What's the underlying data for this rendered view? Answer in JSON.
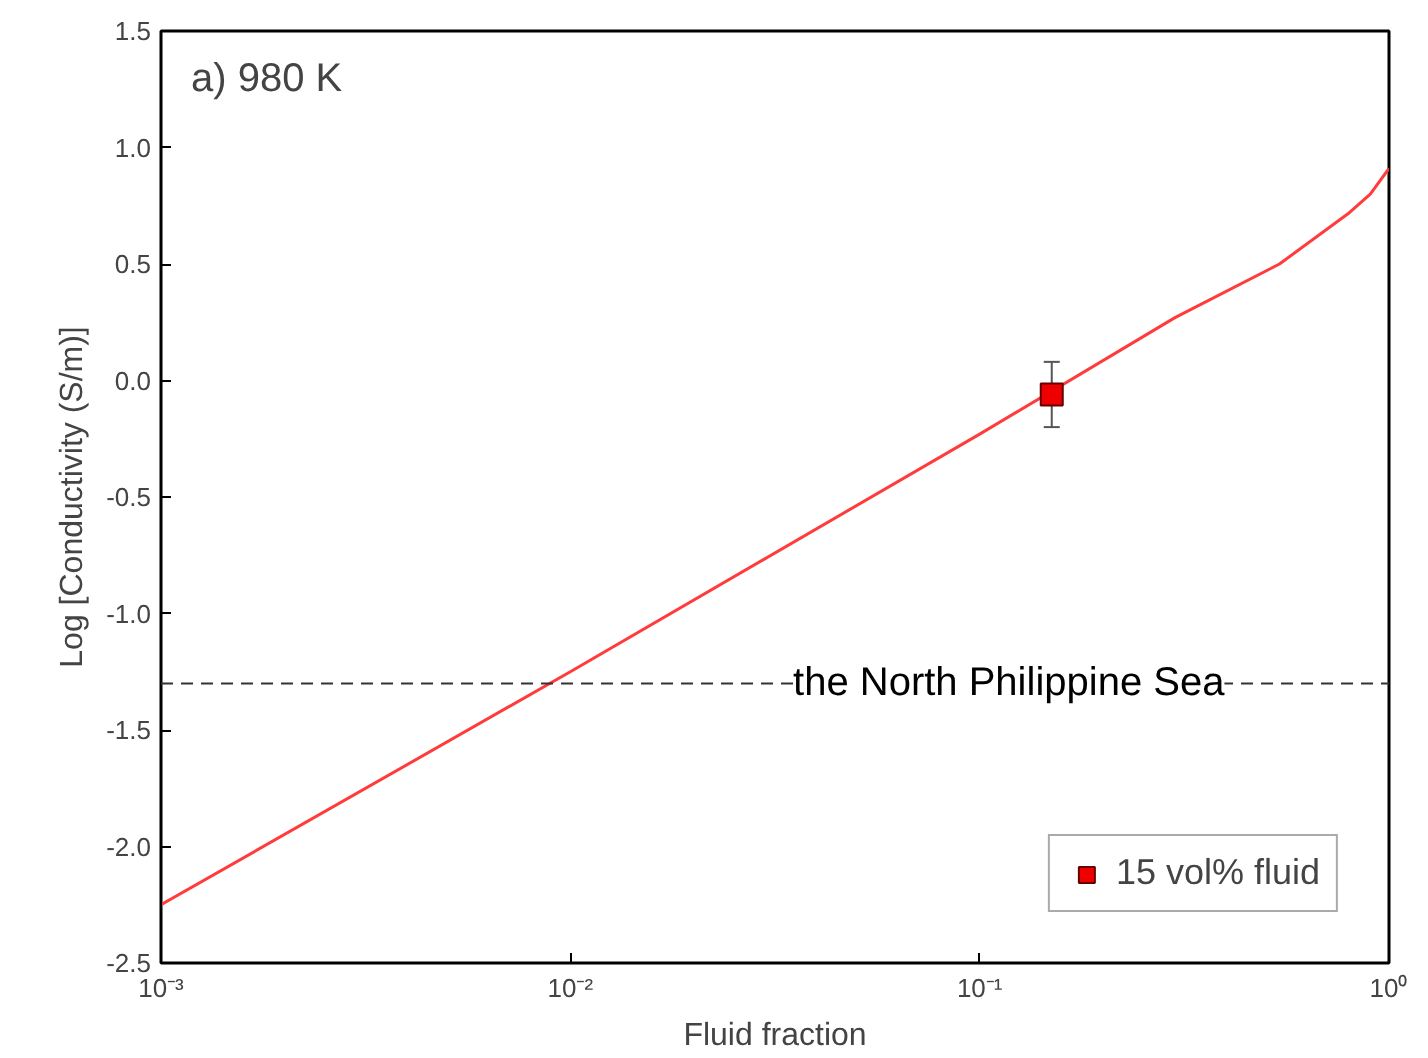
{
  "chart_data": {
    "type": "line",
    "xlabel": "Fluid fraction",
    "ylabel": "Log [Conductivity (S/m)]",
    "log": "x",
    "xlim": [
      0.001,
      1
    ],
    "ylim": [
      -2.5,
      1.5
    ],
    "xticks": [
      {
        "value": 0.001,
        "label": "10⁻³"
      },
      {
        "value": 0.01,
        "label": "10⁻²"
      },
      {
        "value": 0.1,
        "label": "10⁻¹"
      },
      {
        "value": 1,
        "label": "10⁰"
      }
    ],
    "yticks": [
      {
        "value": -2.5,
        "label": "-2.5"
      },
      {
        "value": -2,
        "label": "-2.0"
      },
      {
        "value": -1.5,
        "label": "-1.5"
      },
      {
        "value": -1,
        "label": "-1.0"
      },
      {
        "value": -0.5,
        "label": "-0.5"
      },
      {
        "value": 0,
        "label": "0.0"
      },
      {
        "value": 0.5,
        "label": "0.5"
      },
      {
        "value": 1,
        "label": "1.0"
      },
      {
        "value": 1.5,
        "label": "1.5"
      }
    ],
    "series": [
      {
        "color": "#ff3b3b",
        "x": [
          0.001,
          0.01,
          0.1,
          0.3,
          0.54,
          0.8,
          0.9,
          1.0
        ],
        "values": [
          -2.25,
          -1.25,
          -0.23,
          0.27,
          0.5,
          0.72,
          0.8,
          0.91
        ]
      },
      {
        "type": "scatter",
        "name": "15 vol% fluid",
        "color": "#ee0000",
        "marker": "square",
        "x": [
          0.15
        ],
        "values": [
          -0.06
        ],
        "errors": [
          [
            -0.2,
            0.08
          ]
        ]
      }
    ],
    "ref_lines": [
      {
        "axis": "y",
        "value": -1.3,
        "label": "the North Philippine Sea",
        "line_style": "dashed",
        "color": "#333333"
      }
    ],
    "annotations": [
      "a)  980 K"
    ],
    "legend": "bottom right",
    "grid": false
  }
}
